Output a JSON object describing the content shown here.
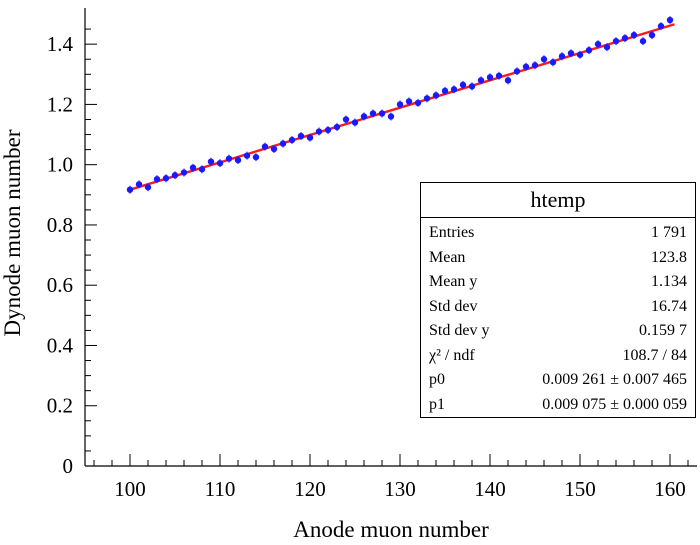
{
  "chart_data": {
    "type": "scatter",
    "title": "",
    "xlabel": "Anode muon number",
    "ylabel": "Dynode muon number",
    "xlim": [
      95,
      163
    ],
    "ylim": [
      0,
      1.52
    ],
    "xticks": [
      100,
      110,
      120,
      130,
      140,
      150,
      160
    ],
    "xtick_labels": [
      "100",
      "110",
      "120",
      "130",
      "140",
      "150",
      "160"
    ],
    "yticks": [
      0,
      0.2,
      0.4,
      0.6,
      0.8,
      1.0,
      1.2,
      1.4
    ],
    "ytick_labels": [
      "0",
      "0.2",
      "0.4",
      "0.6",
      "0.8",
      "1.0",
      "1.2",
      "1.4"
    ],
    "grid": false,
    "marker_color": "#1a1aff",
    "fit_color": "#ff1a1a",
    "series": [
      {
        "name": "data",
        "x": [
          100,
          101,
          102,
          103,
          104,
          105,
          106,
          107,
          108,
          109,
          110,
          111,
          112,
          113,
          114,
          115,
          116,
          117,
          118,
          119,
          120,
          121,
          122,
          123,
          124,
          125,
          126,
          127,
          128,
          129,
          130,
          131,
          132,
          133,
          134,
          135,
          136,
          137,
          138,
          139,
          140,
          141,
          142,
          143,
          144,
          145,
          146,
          147,
          148,
          149,
          150,
          151,
          152,
          153,
          154,
          155,
          156,
          157,
          158,
          159,
          160
        ],
        "y": [
          0.917,
          0.935,
          0.925,
          0.952,
          0.955,
          0.965,
          0.974,
          0.99,
          0.985,
          1.01,
          1.005,
          1.02,
          1.015,
          1.03,
          1.025,
          1.06,
          1.052,
          1.07,
          1.082,
          1.095,
          1.09,
          1.11,
          1.115,
          1.125,
          1.15,
          1.14,
          1.16,
          1.17,
          1.17,
          1.16,
          1.2,
          1.21,
          1.205,
          1.22,
          1.23,
          1.245,
          1.25,
          1.265,
          1.26,
          1.28,
          1.29,
          1.295,
          1.28,
          1.31,
          1.325,
          1.33,
          1.35,
          1.34,
          1.36,
          1.37,
          1.365,
          1.38,
          1.4,
          1.39,
          1.41,
          1.42,
          1.43,
          1.41,
          1.43,
          1.46,
          1.48
        ]
      },
      {
        "name": "fit",
        "type": "line",
        "x": [
          100,
          160.5
        ],
        "y": [
          0.917,
          1.466
        ]
      }
    ]
  },
  "stats_box": {
    "title": "htemp",
    "rows": [
      {
        "label": "Entries",
        "value": "1 791"
      },
      {
        "label": "Mean",
        "value": "123.8"
      },
      {
        "label": "Mean y",
        "value": "1.134"
      },
      {
        "label": "Std dev",
        "value": "16.74"
      },
      {
        "label": "Std dev y",
        "value": "0.159 7"
      },
      {
        "label": "χ² / ndf",
        "value": "108.7 / 84"
      },
      {
        "label": "p0",
        "value": "0.009 261 ± 0.007 465"
      },
      {
        "label": "p1",
        "value": "0.009 075 ± 0.000 059"
      }
    ]
  }
}
